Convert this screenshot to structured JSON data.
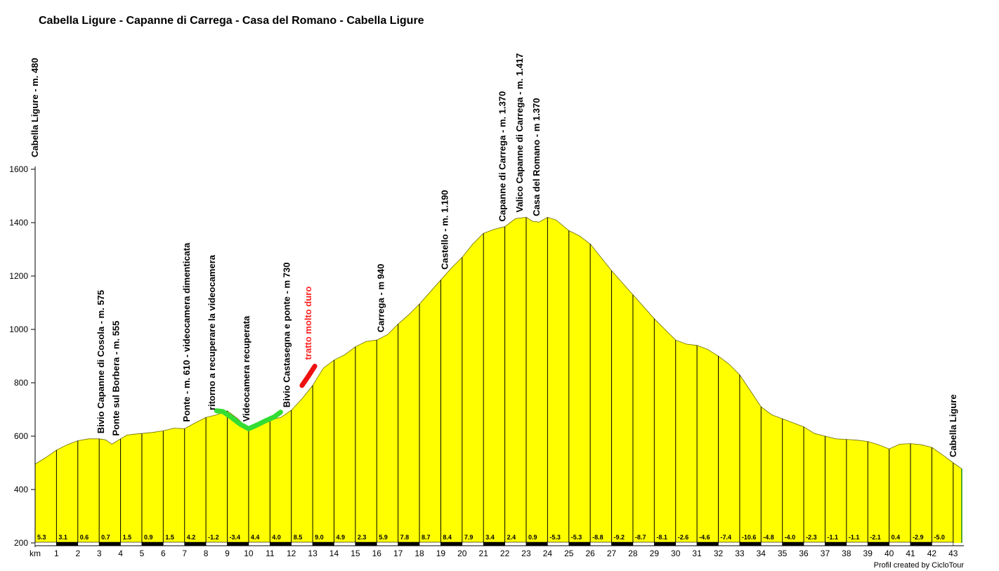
{
  "page": {
    "title": "Cabella Ligure - Capanne di Carrega - Casa del Romano - Cabella Ligure",
    "credit": "Profil created by CicloTour"
  },
  "chart_data": {
    "type": "area",
    "title": "Cabella Ligure - Capanne di Carrega - Casa del Romano - Cabella Ligure",
    "xlabel": "km",
    "ylabel": "",
    "xlim": [
      0,
      43.5
    ],
    "ylim": [
      200,
      1650
    ],
    "yticks": [
      200,
      400,
      600,
      800,
      1000,
      1200,
      1400,
      1600
    ],
    "xticks": [
      1,
      2,
      3,
      4,
      5,
      6,
      7,
      8,
      9,
      10,
      11,
      12,
      13,
      14,
      15,
      16,
      17,
      18,
      19,
      20,
      21,
      22,
      23,
      24,
      25,
      26,
      27,
      28,
      29,
      30,
      31,
      32,
      33,
      34,
      35,
      36,
      37,
      38,
      39,
      40,
      41,
      42,
      43
    ],
    "grid": false,
    "fill_color": "#ffff00",
    "x": [
      0,
      0.5,
      1,
      1.5,
      2,
      2.5,
      3,
      3.3,
      3.6,
      4,
      4.3,
      4.6,
      5,
      5.5,
      6,
      6.5,
      7,
      7.5,
      8,
      8.5,
      9,
      9.5,
      10,
      10.5,
      11,
      11.5,
      12,
      12.5,
      13,
      13.5,
      14,
      14.5,
      15,
      15.5,
      16,
      16.5,
      17,
      17.5,
      18,
      18.5,
      19,
      19.5,
      20,
      20.5,
      21,
      21.5,
      22,
      22.5,
      23,
      23.3,
      23.6,
      24,
      24.4,
      25,
      25.5,
      26,
      26.5,
      27,
      27.5,
      28,
      28.5,
      29,
      29.5,
      30,
      30.5,
      31,
      31.5,
      32,
      32.5,
      33,
      33.5,
      34,
      34.5,
      35,
      35.5,
      36,
      36.5,
      37,
      37.5,
      38,
      38.5,
      39,
      39.5,
      40,
      40.5,
      41,
      41.5,
      42,
      42.5,
      43,
      43.4
    ],
    "elevation": [
      495,
      520,
      548,
      568,
      583,
      590,
      590,
      586,
      570,
      590,
      604,
      607,
      610,
      614,
      620,
      630,
      628,
      650,
      670,
      680,
      695,
      665,
      625,
      640,
      660,
      670,
      697,
      740,
      790,
      855,
      885,
      905,
      935,
      955,
      960,
      980,
      1020,
      1055,
      1095,
      1140,
      1185,
      1230,
      1270,
      1320,
      1360,
      1375,
      1385,
      1415,
      1420,
      1405,
      1402,
      1420,
      1410,
      1370,
      1350,
      1320,
      1270,
      1220,
      1175,
      1130,
      1085,
      1040,
      1000,
      960,
      945,
      940,
      925,
      900,
      870,
      830,
      770,
      710,
      680,
      665,
      650,
      635,
      610,
      600,
      590,
      588,
      585,
      580,
      568,
      552,
      570,
      572,
      568,
      558,
      530,
      500,
      478
    ],
    "segments": {
      "km_marks": [
        0,
        1,
        2,
        3,
        4,
        5,
        6,
        7,
        8,
        9,
        10,
        11,
        12,
        13,
        14,
        15,
        16,
        17,
        18,
        19,
        20,
        21,
        22,
        23,
        24,
        25,
        26,
        27,
        28,
        29,
        30,
        31,
        32,
        33,
        34,
        35,
        36,
        37,
        38,
        39,
        40,
        41,
        42,
        43
      ],
      "gradients": [
        "5.3",
        "3.1",
        "0.6",
        "0.7",
        "1.5",
        "0.9",
        "1.5",
        "4.2",
        "-1.2",
        "-3.4",
        "4.4",
        "4.0",
        "8.5",
        "9.0",
        "4.9",
        "2.3",
        "5.9",
        "7.8",
        "8.7",
        "8.4",
        "7.9",
        "3.4",
        "2.4",
        "0.9",
        "-5.3",
        "-5.3",
        "-8.8",
        "-9.2",
        "-8.7",
        "-8.1",
        "-2.6",
        "-4.6",
        "-7.4",
        "-10.6",
        "-4.8",
        "-4.0",
        "-2.3",
        "-1.1",
        "-1.1",
        "-2.1",
        "0.4",
        "-2.9",
        "-5.0"
      ]
    },
    "annotations": [
      {
        "text": "Cabella Ligure - m. 480",
        "x": 0,
        "color": "#000000"
      },
      {
        "text": "Bivio Capanne di Cosola - m. 575",
        "x": 3.1,
        "color": "#000000"
      },
      {
        "text": "Ponte sul Borbera - m. 555",
        "x": 3.8,
        "color": "#000000"
      },
      {
        "text": "Ponte - m. 610 - videocamera dimenticata",
        "x": 7.1,
        "color": "#000000"
      },
      {
        "text": "ritorno a recuperare la videocamera",
        "x": 8.3,
        "color": "#000000"
      },
      {
        "text": "Videocamera recuperata",
        "x": 9.9,
        "color": "#000000"
      },
      {
        "text": "Bivio Castasegna e ponte - m 730",
        "x": 11.8,
        "color": "#000000"
      },
      {
        "text": "tratto molto duro",
        "x": 12.8,
        "color": "#ff2020"
      },
      {
        "text": "Carrega - m 940",
        "x": 16.2,
        "color": "#000000"
      },
      {
        "text": "Castello - m. 1.190",
        "x": 19.2,
        "color": "#000000"
      },
      {
        "text": "Capanne di Carrega - m. 1.370",
        "x": 21.9,
        "color": "#000000"
      },
      {
        "text": "Valico Capanne di Carrega - m. 1.417",
        "x": 22.7,
        "color": "#000000"
      },
      {
        "text": "Casa del Romano - m 1.370",
        "x": 23.5,
        "color": "#000000"
      },
      {
        "text": "Cabella Ligure",
        "x": 43.0,
        "color": "#000000"
      }
    ],
    "highlights": [
      {
        "color": "#33dd33",
        "x": [
          8.5,
          8.8,
          9.2,
          9.6,
          10.0,
          10.4,
          10.8,
          11.2,
          11.5
        ],
        "y": [
          695,
          692,
          670,
          645,
          628,
          642,
          658,
          672,
          690
        ]
      },
      {
        "color": "#ee1111",
        "x": [
          12.5,
          12.8,
          13.1
        ],
        "y": [
          790,
          825,
          862
        ]
      }
    ]
  }
}
